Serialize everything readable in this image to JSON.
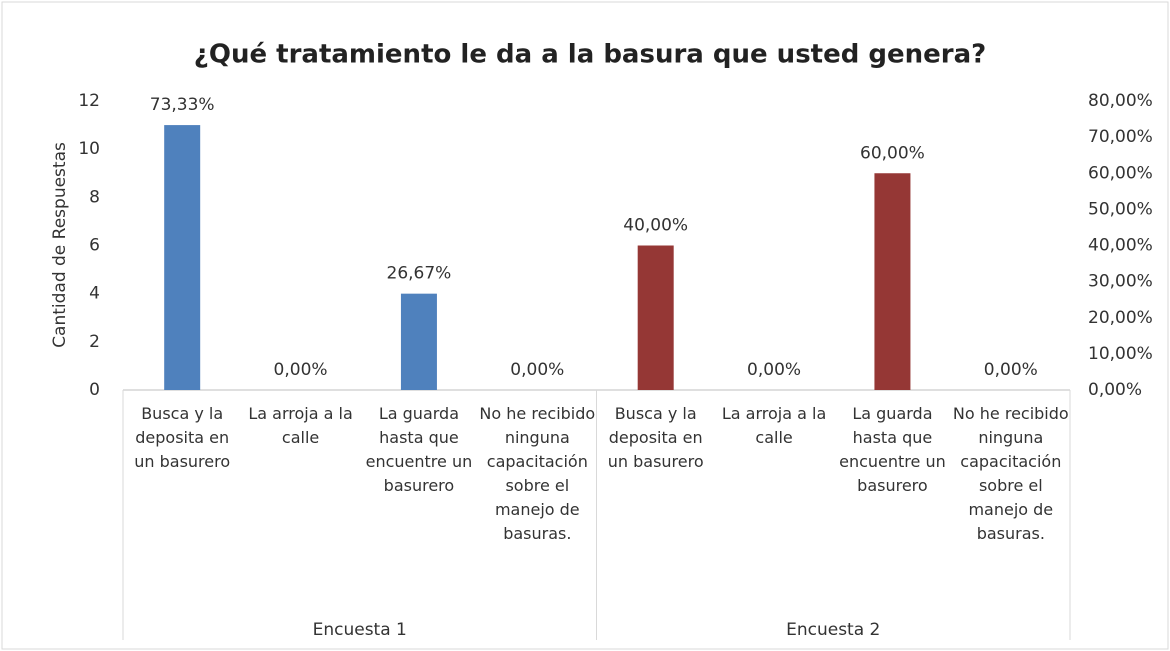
{
  "chart_data": {
    "type": "bar",
    "title": "¿Qué tratamiento le da a la basura que usted genera?",
    "y_label": "Cantidad de Respuestas",
    "categories": [
      "Busca y la deposita en un basurero",
      "La arroja a la calle",
      "La guarda hasta que encuentre un basurero",
      "No he recibido ninguna capacitación sobre el manejo de basuras."
    ],
    "series": [
      {
        "name": "Encuesta 1",
        "color": "#4f81bd",
        "values": [
          11,
          0,
          4,
          0
        ],
        "percents": [
          73.33,
          0,
          26.67,
          0
        ],
        "value_labels": [
          "73,33%",
          "0,00%",
          "26,67%",
          "0,00%"
        ]
      },
      {
        "name": "Encuesta 2",
        "color": "#953735",
        "values": [
          6,
          0,
          9,
          0
        ],
        "percents": [
          40,
          0,
          60,
          0
        ],
        "value_labels": [
          "40,00%",
          "0,00%",
          "60,00%",
          "0,00%"
        ]
      }
    ],
    "ylim": [
      0,
      12
    ],
    "yticks": [
      0,
      2,
      4,
      6,
      8,
      10,
      12
    ],
    "y2lim": [
      0,
      80
    ],
    "y2ticks": [
      {
        "value": 0,
        "label": "0,00%"
      },
      {
        "value": 10,
        "label": "10,00%"
      },
      {
        "value": 20,
        "label": "20,00%"
      },
      {
        "value": 30,
        "label": "30,00%"
      },
      {
        "value": 40,
        "label": "40,00%"
      },
      {
        "value": 50,
        "label": "50,00%"
      },
      {
        "value": 60,
        "label": "60,00%"
      },
      {
        "value": 70,
        "label": "70,00%"
      },
      {
        "value": 80,
        "label": "80,00%"
      }
    ],
    "grid": false
  }
}
